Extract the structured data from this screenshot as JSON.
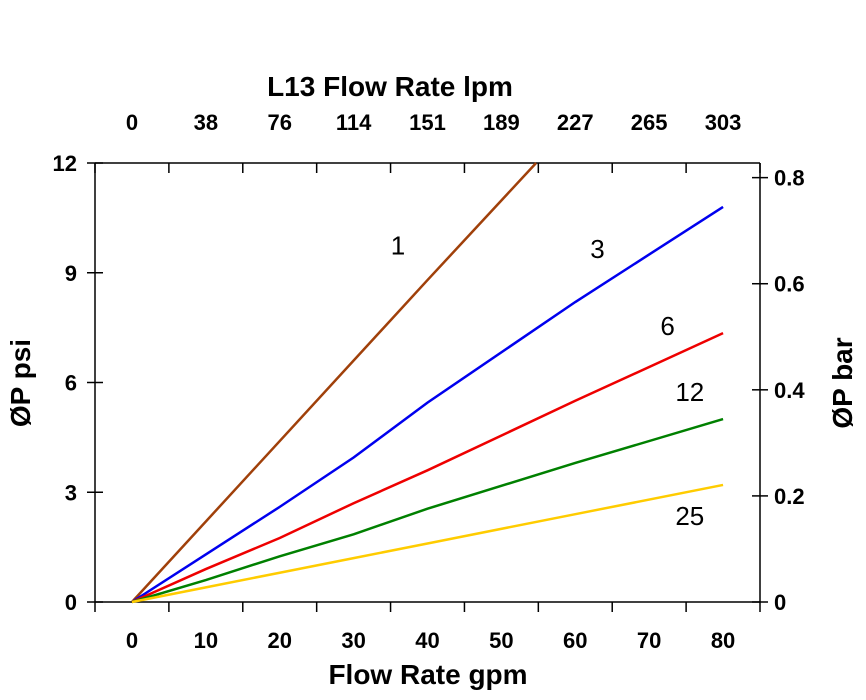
{
  "chart_data": {
    "type": "line",
    "title": "L13  Flow Rate lpm",
    "xlabel": "Flow Rate gpm",
    "ylabel": "ØP psi",
    "y2label": "ØP bar",
    "xlim": [
      -5,
      85
    ],
    "ylim": [
      0,
      12
    ],
    "x_ticks": [
      0,
      10,
      20,
      30,
      40,
      50,
      60,
      70,
      80
    ],
    "y_ticks": [
      0,
      3,
      6,
      9,
      12
    ],
    "x2_ticks": [
      "0",
      "38",
      "76",
      "114",
      "151",
      "189",
      "227",
      "265",
      "303"
    ],
    "y2_ticks": [
      "0",
      "0.2",
      "0.4",
      "0.6",
      "0.8"
    ],
    "y2_psi_per_unit": 14.5,
    "grid": false,
    "series": [
      {
        "name": "1",
        "color": "#a0400a",
        "x": [
          0,
          20,
          40,
          54.7
        ],
        "y": [
          0,
          4.4,
          8.8,
          12
        ]
      },
      {
        "name": "3",
        "color": "#0000ee",
        "x": [
          0,
          10,
          20,
          30,
          40,
          60,
          80
        ],
        "y": [
          0,
          1.3,
          2.6,
          3.95,
          5.45,
          8.2,
          10.8
        ]
      },
      {
        "name": "6",
        "color": "#ee0000",
        "x": [
          0,
          10,
          20,
          30,
          40,
          60,
          80
        ],
        "y": [
          0,
          0.9,
          1.75,
          2.7,
          3.6,
          5.5,
          7.35
        ]
      },
      {
        "name": "12",
        "color": "#008000",
        "x": [
          0,
          10,
          20,
          30,
          40,
          60,
          80
        ],
        "y": [
          0,
          0.6,
          1.25,
          1.85,
          2.55,
          3.8,
          5.0
        ]
      },
      {
        "name": "25",
        "color": "#ffcc00",
        "x": [
          0,
          10,
          20,
          30,
          40,
          60,
          80
        ],
        "y": [
          0,
          0.4,
          0.8,
          1.2,
          1.6,
          2.4,
          3.2
        ]
      }
    ],
    "annotations": [
      {
        "text": "1",
        "x": 36,
        "y": 9.5
      },
      {
        "text": "3",
        "x": 63,
        "y": 9.4
      },
      {
        "text": "6",
        "x": 72.5,
        "y": 7.3
      },
      {
        "text": "12",
        "x": 75.5,
        "y": 5.5
      },
      {
        "text": "25",
        "x": 75.5,
        "y": 2.1
      }
    ]
  }
}
